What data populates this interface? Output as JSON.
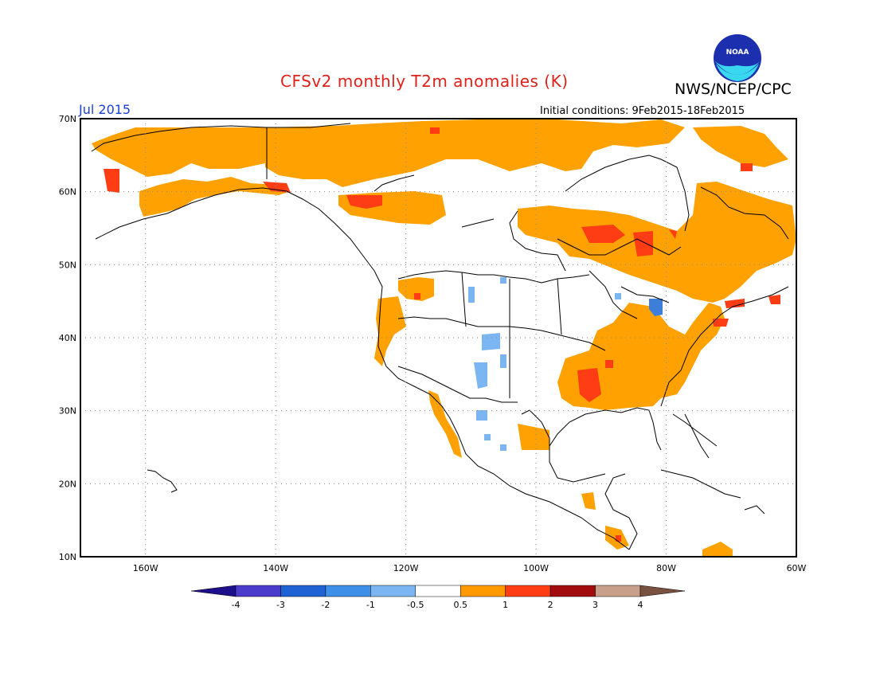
{
  "title": "CFSv2 monthly T2m anomalies (K)",
  "agency": "NWS/NCEP/CPC",
  "logo_text": "NOAA",
  "month": "Jul 2015",
  "initial_conditions": "Initial conditions: 9Feb2015-18Feb2015",
  "lat_labels": [
    "70N",
    "60N",
    "50N",
    "40N",
    "30N",
    "20N",
    "10N"
  ],
  "lon_labels": [
    "160W",
    "140W",
    "120W",
    "100W",
    "80W",
    "60W"
  ],
  "colorbar": {
    "labels": [
      "-4",
      "-3",
      "-2",
      "-1",
      "-0.5",
      "0.5",
      "1",
      "2",
      "3",
      "4"
    ],
    "colors": [
      "#1e0f8c",
      "#4c3ccc",
      "#1f62d4",
      "#3d8fe8",
      "#7cb6f2",
      "#ffffff",
      "#ff9a00",
      "#ff3d14",
      "#a30c0c",
      "#c8a08a",
      "#7a5140"
    ]
  },
  "map": {
    "extent": {
      "lon_min": -170,
      "lon_max": -60,
      "lat_min": 10,
      "lat_max": 70
    },
    "colors": {
      "warm1": "#ffa100",
      "warm2": "#ff3d14",
      "cool1": "#7cb6f2",
      "cool2": "#3d7fd8",
      "line": "#000000",
      "grid": "#888888"
    }
  }
}
